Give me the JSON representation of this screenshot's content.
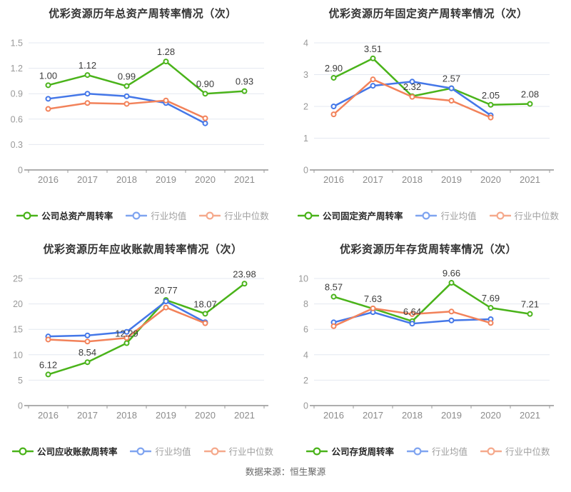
{
  "footer": {
    "source": "数据来源：恒生聚源"
  },
  "palette": {
    "grid": "#e4e8f0",
    "axis": "#7d7d7d",
    "tick": "#999999",
    "tick_label": "#999999",
    "year_label": "#8c8c8c",
    "data_label": "#3c3c3c"
  },
  "chart_data": [
    {
      "type": "line",
      "title": "优彩资源历年总资产周转率情况（次）",
      "categories": [
        "2016",
        "2017",
        "2018",
        "2019",
        "2020",
        "2021"
      ],
      "y_ticks": [
        "0",
        "0.3",
        "0.6",
        "0.9",
        "1.2",
        "1.5"
      ],
      "ylim": [
        0,
        1.5
      ],
      "legend_position": "bottom",
      "grid": true,
      "series": [
        {
          "name": "公司总资产周转率",
          "color": "#4ab31a",
          "legend_color": "#4ab31a",
          "values": [
            1.0,
            1.12,
            0.99,
            1.28,
            0.9,
            0.93
          ],
          "labels": [
            "1.00",
            "1.12",
            "0.99",
            "1.28",
            "0.90",
            "0.93"
          ]
        },
        {
          "name": "行业均值",
          "color": "#4477e8",
          "legend_color": "#7fa4f0",
          "values": [
            0.84,
            0.9,
            0.87,
            0.79,
            0.55
          ]
        },
        {
          "name": "行业中位数",
          "color": "#f2825a",
          "legend_color": "#f5a98c",
          "values": [
            0.72,
            0.79,
            0.78,
            0.82,
            0.61
          ]
        }
      ]
    },
    {
      "type": "line",
      "title": "优彩资源历年固定资产周转率情况（次）",
      "categories": [
        "2016",
        "2017",
        "2018",
        "2019",
        "2020",
        "2021"
      ],
      "y_ticks": [
        "0",
        "1",
        "2",
        "3",
        "4"
      ],
      "ylim": [
        0,
        4
      ],
      "legend_position": "bottom",
      "grid": true,
      "series": [
        {
          "name": "公司固定资产周转率",
          "color": "#4ab31a",
          "legend_color": "#4ab31a",
          "values": [
            2.9,
            3.51,
            2.32,
            2.57,
            2.05,
            2.08
          ],
          "labels": [
            "2.90",
            "3.51",
            "2.32",
            "2.57",
            "2.05",
            "2.08"
          ]
        },
        {
          "name": "行业均值",
          "color": "#4477e8",
          "legend_color": "#7fa4f0",
          "values": [
            2.0,
            2.65,
            2.78,
            2.57,
            1.72
          ]
        },
        {
          "name": "行业中位数",
          "color": "#f2825a",
          "legend_color": "#f5a98c",
          "values": [
            1.75,
            2.85,
            2.3,
            2.18,
            1.65
          ]
        }
      ]
    },
    {
      "type": "line",
      "title": "优彩资源历年应收账款周转率情况（次）",
      "categories": [
        "2016",
        "2017",
        "2018",
        "2019",
        "2020",
        "2021"
      ],
      "y_ticks": [
        "0",
        "5",
        "10",
        "15",
        "20",
        "25"
      ],
      "ylim": [
        0,
        25
      ],
      "legend_position": "bottom",
      "grid": true,
      "series": [
        {
          "name": "公司应收账款周转率",
          "color": "#4ab31a",
          "legend_color": "#4ab31a",
          "values": [
            6.12,
            8.54,
            12.29,
            20.77,
            18.07,
            23.98
          ],
          "labels": [
            "6.12",
            "8.54",
            "12.29",
            "20.77",
            "18.07",
            "23.98"
          ]
        },
        {
          "name": "行业均值",
          "color": "#4477e8",
          "legend_color": "#7fa4f0",
          "values": [
            13.6,
            13.8,
            14.5,
            20.5,
            16.4
          ]
        },
        {
          "name": "行业中位数",
          "color": "#f2825a",
          "legend_color": "#f5a98c",
          "values": [
            13.0,
            12.6,
            13.3,
            19.3,
            16.2
          ]
        }
      ]
    },
    {
      "type": "line",
      "title": "优彩资源历年存货周转率情况（次）",
      "categories": [
        "2016",
        "2017",
        "2018",
        "2019",
        "2020",
        "2021"
      ],
      "y_ticks": [
        "0",
        "2",
        "4",
        "6",
        "8",
        "10"
      ],
      "ylim": [
        0,
        10
      ],
      "legend_position": "bottom",
      "grid": true,
      "series": [
        {
          "name": "公司存货周转率",
          "color": "#4ab31a",
          "legend_color": "#4ab31a",
          "values": [
            8.57,
            7.63,
            6.64,
            9.66,
            7.69,
            7.21
          ],
          "labels": [
            "8.57",
            "7.63",
            "6.64",
            "9.66",
            "7.69",
            "7.21"
          ]
        },
        {
          "name": "行业均值",
          "color": "#4477e8",
          "legend_color": "#7fa4f0",
          "values": [
            6.55,
            7.35,
            6.45,
            6.7,
            6.8
          ]
        },
        {
          "name": "行业中位数",
          "color": "#f2825a",
          "legend_color": "#f5a98c",
          "values": [
            6.25,
            7.65,
            7.2,
            7.4,
            6.5
          ]
        }
      ]
    }
  ]
}
